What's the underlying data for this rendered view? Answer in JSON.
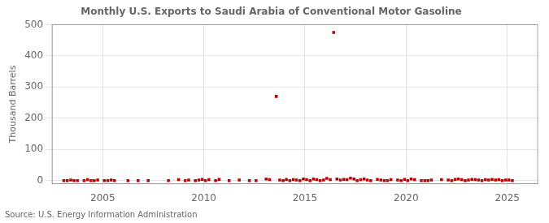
{
  "chart_data": {
    "type": "scatter",
    "title": "Monthly U.S. Exports to Saudi Arabia of Conventional Motor Gasoline",
    "ylabel": "Thousand Barrels",
    "annotations": [
      "Source: U.S. Energy Information Administration"
    ],
    "x": [
      2003.08,
      2003.25,
      2003.42,
      2003.58,
      2003.75,
      2004.08,
      2004.25,
      2004.42,
      2004.58,
      2004.75,
      2005.08,
      2005.25,
      2005.42,
      2005.58,
      2006.25,
      2006.75,
      2007.25,
      2008.25,
      2008.75,
      2009.08,
      2009.25,
      2009.58,
      2009.75,
      2009.92,
      2010.08,
      2010.25,
      2010.58,
      2010.75,
      2011.25,
      2011.75,
      2012.25,
      2012.58,
      2013.08,
      2013.25,
      2013.58,
      2013.75,
      2013.92,
      2014.08,
      2014.25,
      2014.42,
      2014.58,
      2014.75,
      2014.92,
      2015.08,
      2015.25,
      2015.42,
      2015.58,
      2015.75,
      2015.92,
      2016.08,
      2016.25,
      2016.42,
      2016.58,
      2016.75,
      2016.92,
      2017.08,
      2017.25,
      2017.42,
      2017.58,
      2017.75,
      2017.92,
      2018.08,
      2018.25,
      2018.58,
      2018.75,
      2018.92,
      2019.08,
      2019.25,
      2019.58,
      2019.75,
      2019.92,
      2020.08,
      2020.25,
      2020.42,
      2020.75,
      2020.92,
      2021.08,
      2021.25,
      2021.75,
      2022.08,
      2022.25,
      2022.42,
      2022.58,
      2022.75,
      2022.92,
      2023.08,
      2023.25,
      2023.42,
      2023.58,
      2023.75,
      2023.92,
      2024.08,
      2024.25,
      2024.42,
      2024.58,
      2024.75,
      2024.92,
      2025.08,
      2025.25
    ],
    "values": [
      0,
      0,
      2,
      0,
      0,
      0,
      3,
      0,
      0,
      2,
      0,
      0,
      2,
      0,
      0,
      0,
      0,
      0,
      3,
      0,
      2,
      0,
      2,
      4,
      0,
      3,
      0,
      4,
      0,
      2,
      0,
      0,
      5,
      3,
      270,
      2,
      0,
      4,
      0,
      3,
      2,
      0,
      5,
      3,
      0,
      5,
      3,
      0,
      2,
      7,
      3,
      475,
      5,
      2,
      4,
      3,
      8,
      5,
      0,
      3,
      5,
      2,
      0,
      4,
      2,
      0,
      0,
      3,
      2,
      0,
      4,
      0,
      5,
      3,
      0,
      0,
      0,
      2,
      3,
      2,
      0,
      4,
      5,
      3,
      0,
      2,
      4,
      3,
      2,
      0,
      3,
      2,
      4,
      2,
      3,
      0,
      2,
      2,
      0
    ],
    "color": "#bb0000",
    "marker": "square",
    "xlim": [
      2002.5,
      2026.5
    ],
    "xticks": [
      2005,
      2010,
      2015,
      2020,
      2025
    ],
    "ylim": [
      -10,
      500
    ],
    "yticks": [
      0,
      100,
      200,
      300,
      400,
      500
    ],
    "grid": true
  }
}
